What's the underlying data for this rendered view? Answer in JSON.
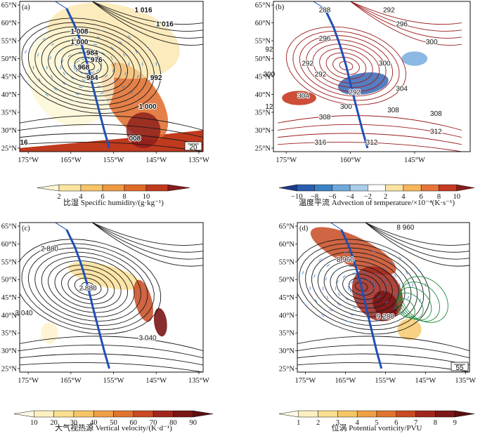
{
  "chart_data": [
    {
      "type": "heatmap",
      "panel_label": "(a)",
      "x_ticks": [
        "175°W",
        "165°W",
        "155°W",
        "145°W",
        "135°W"
      ],
      "y_ticks": [
        "65°N",
        "60°N",
        "55°N",
        "50°N",
        "45°N",
        "40°N",
        "35°N",
        "30°N",
        "25°N"
      ],
      "contour_labels": [
        {
          "text": "1 016",
          "lon": -148,
          "lat": 63
        },
        {
          "text": "1 016",
          "lon": -143,
          "lat": 59
        },
        {
          "text": "1 008",
          "lon": -163,
          "lat": 57
        },
        {
          "text": "1 000",
          "lon": -163,
          "lat": 54
        },
        {
          "text": "984",
          "lon": -160,
          "lat": 51
        },
        {
          "text": "976",
          "lon": -159,
          "lat": 49
        },
        {
          "text": "968",
          "lon": -162,
          "lat": 47
        },
        {
          "text": "984",
          "lon": -160,
          "lat": 44
        },
        {
          "text": "992",
          "lon": -145,
          "lat": 44
        },
        {
          "text": "1 000",
          "lon": -147,
          "lat": 36
        },
        {
          "text": "16",
          "lon": -176,
          "lat": 26
        },
        {
          "text": "008",
          "lon": -150,
          "lat": 27
        }
      ],
      "vector_reference": "20",
      "colorbar": {
        "ticks": [
          2,
          4,
          6,
          8,
          10
        ],
        "label": "比湿 Specific humidity/(g·kg⁻¹)",
        "colors": [
          "#fdf6d2",
          "#fbe3a0",
          "#f7c468",
          "#ef9940",
          "#df6a28",
          "#c03a1e",
          "#8a1a1a"
        ]
      }
    },
    {
      "type": "heatmap",
      "panel_label": "(b)",
      "x_ticks": [
        "175°W",
        "160°W",
        "145°W"
      ],
      "y_ticks": [
        "65°N",
        "60°N",
        "55°N",
        "50°N",
        "45°N",
        "40°N",
        "35°N",
        "30°N",
        "25°N"
      ],
      "contour_labels": [
        {
          "text": "288",
          "lon": -166,
          "lat": 63
        },
        {
          "text": "292",
          "lon": -151,
          "lat": 63
        },
        {
          "text": "296",
          "lon": -148,
          "lat": 59
        },
        {
          "text": "296",
          "lon": -166,
          "lat": 55
        },
        {
          "text": "300",
          "lon": -141,
          "lat": 54
        },
        {
          "text": "92",
          "lon": -179,
          "lat": 52
        },
        {
          "text": "300",
          "lon": -179,
          "lat": 45
        },
        {
          "text": "292",
          "lon": -170,
          "lat": 48
        },
        {
          "text": "292",
          "lon": -167,
          "lat": 45
        },
        {
          "text": "300",
          "lon": -152,
          "lat": 48
        },
        {
          "text": "304",
          "lon": -148,
          "lat": 41
        },
        {
          "text": "292",
          "lon": -159,
          "lat": 40
        },
        {
          "text": "304",
          "lon": -171,
          "lat": 39
        },
        {
          "text": "300",
          "lon": -161,
          "lat": 36
        },
        {
          "text": "308",
          "lon": -150,
          "lat": 35
        },
        {
          "text": "12",
          "lon": -179,
          "lat": 36
        },
        {
          "text": "308",
          "lon": -166,
          "lat": 33
        },
        {
          "text": "308",
          "lon": -140,
          "lat": 34
        },
        {
          "text": "312",
          "lon": -140,
          "lat": 29
        },
        {
          "text": "312",
          "lon": -155,
          "lat": 26
        },
        {
          "text": "316",
          "lon": -167,
          "lat": 26
        }
      ],
      "colorbar": {
        "ticks": [
          -10,
          -8,
          -6,
          -4,
          -2,
          2,
          4,
          6,
          8,
          10
        ],
        "label": "温度平流 Advection of temperature/×10⁻⁴(K·s⁻¹)",
        "colors": [
          "#1e3a8a",
          "#2a5db0",
          "#3b82c4",
          "#6fa8dc",
          "#a9cde8",
          "#ffffff",
          "#fbe3a0",
          "#f7b65a",
          "#e8743a",
          "#c63a22",
          "#8a1a1a"
        ]
      }
    },
    {
      "type": "heatmap",
      "panel_label": "(c)",
      "x_ticks": [
        "175°W",
        "165°W",
        "155°W",
        "145°W",
        "135°W"
      ],
      "y_ticks": [
        "65°N",
        "60°N",
        "55°N",
        "50°N",
        "45°N",
        "40°N",
        "35°N",
        "30°N",
        "25°N"
      ],
      "contour_labels": [
        {
          "text": "2 880",
          "lon": -170,
          "lat": 58
        },
        {
          "text": "2 880",
          "lon": -161,
          "lat": 47
        },
        {
          "text": "3 040",
          "lon": -176,
          "lat": 40
        },
        {
          "text": "3 040",
          "lon": -147,
          "lat": 33
        }
      ],
      "colorbar": {
        "ticks": [
          10,
          20,
          30,
          40,
          50,
          60,
          70,
          80,
          90
        ],
        "label": "大气视热源 Vertical velocity/(K·d⁻¹)",
        "colors": [
          "#fffbe6",
          "#fdf0c0",
          "#fbdf90",
          "#f6c565",
          "#ef9f45",
          "#e0742e",
          "#c84a22",
          "#a0261c",
          "#7a1616",
          "#5a0e0e"
        ]
      }
    },
    {
      "type": "heatmap",
      "panel_label": "(d)",
      "x_ticks": [
        "175°W",
        "165°W",
        "155°W",
        "145°W",
        "135°W"
      ],
      "y_ticks": [
        "65°N",
        "60°N",
        "55°N",
        "50°N",
        "45°N",
        "40°N",
        "35°N",
        "30°N",
        "25°N"
      ],
      "contour_labels": [
        {
          "text": "8 960",
          "lon": -150,
          "lat": 64
        },
        {
          "text": "8 960",
          "lon": -165,
          "lat": 55
        },
        {
          "text": "9 280",
          "lon": -155,
          "lat": 39
        }
      ],
      "vector_reference": "55",
      "colorbar": {
        "ticks": [
          1,
          2,
          3,
          4,
          5,
          6,
          7,
          8,
          9
        ],
        "label": "位涡 Potential vorticity/PVU",
        "colors": [
          "#fffbe6",
          "#fdf0c0",
          "#fbdf90",
          "#f6c565",
          "#ef9f45",
          "#e0742e",
          "#c84a22",
          "#a0261c",
          "#7a1616",
          "#5a0e0e"
        ]
      }
    }
  ]
}
